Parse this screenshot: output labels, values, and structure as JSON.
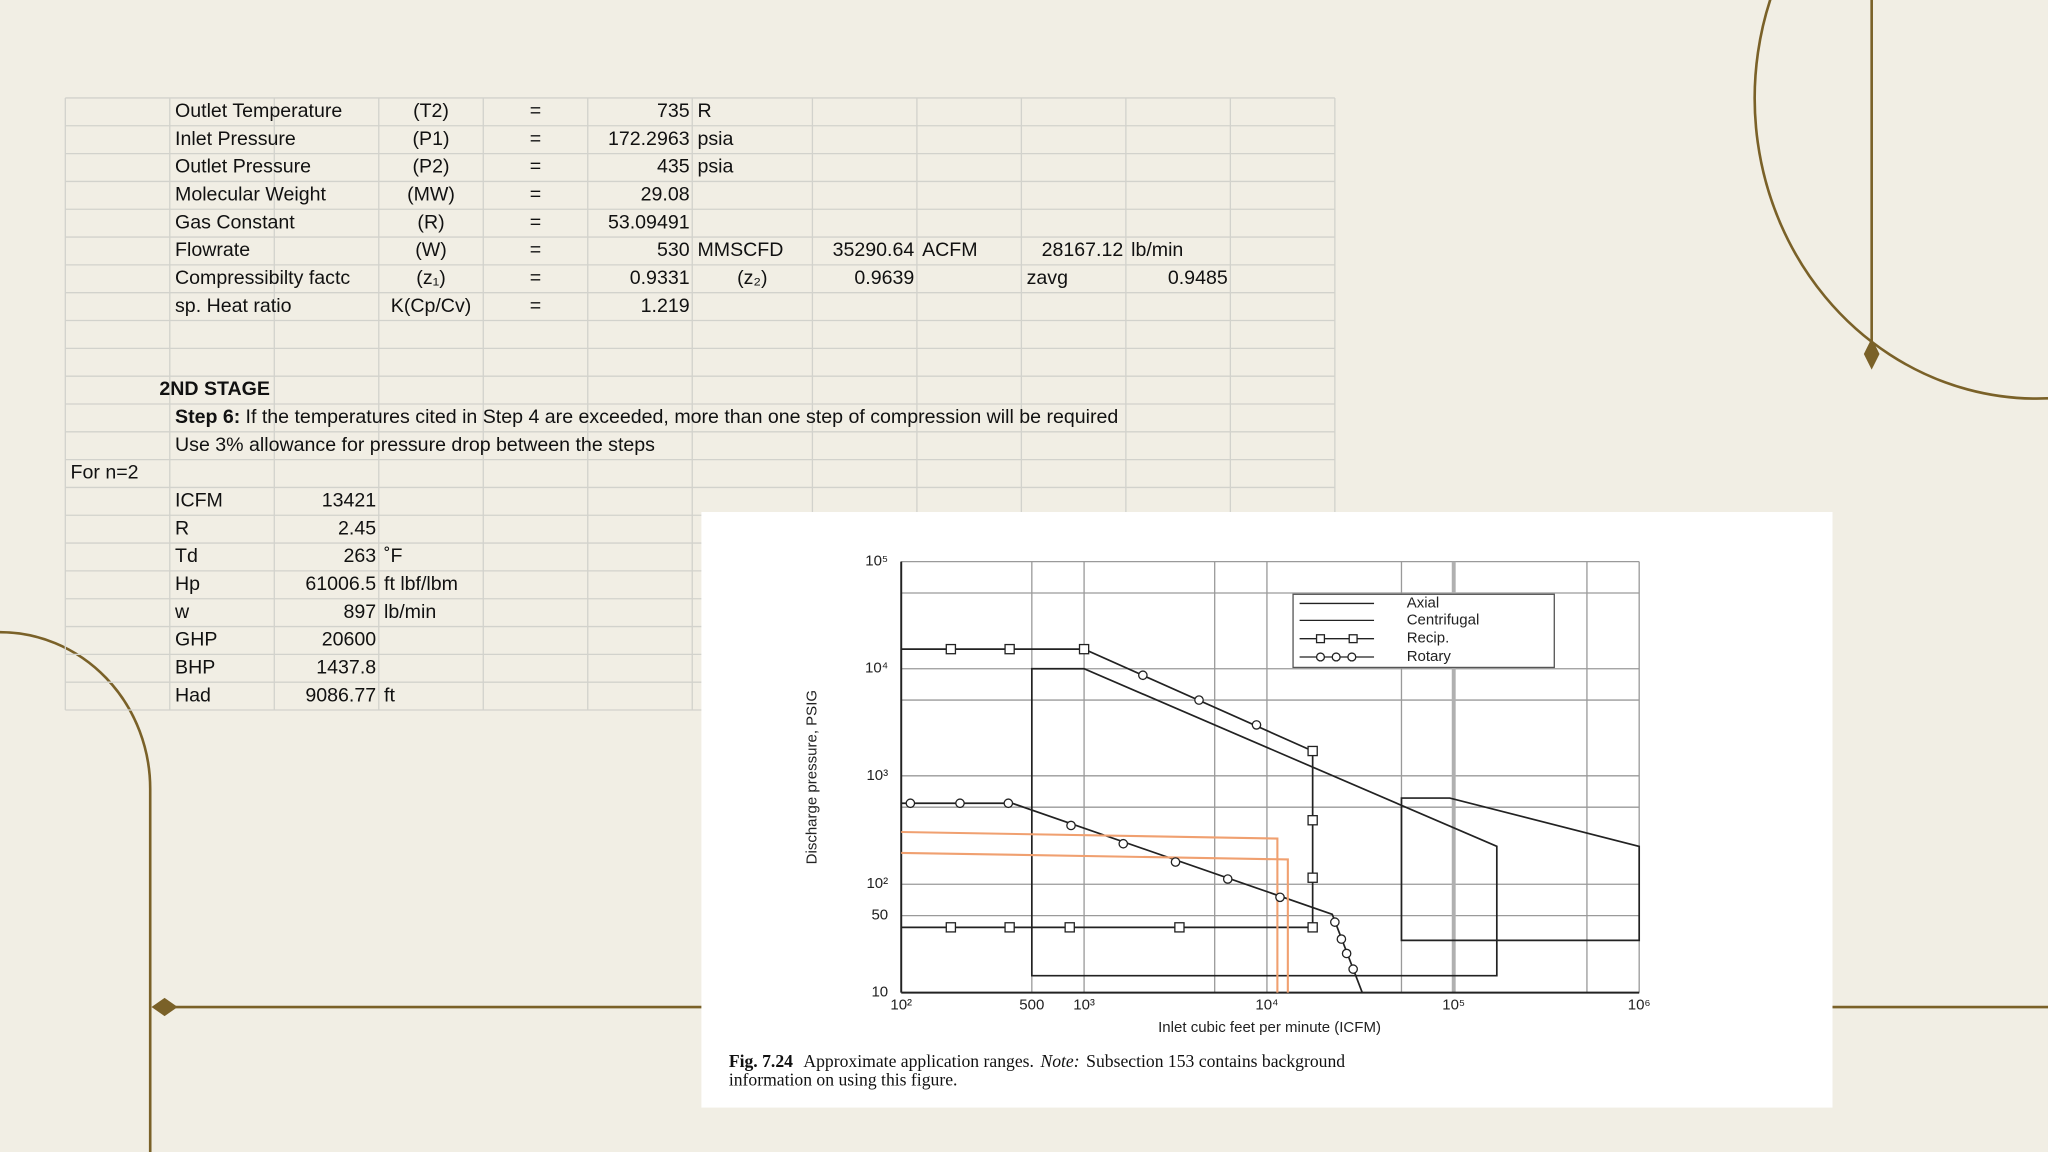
{
  "table": {
    "rows": [
      [
        null,
        "Outlet Temperature",
        null,
        "(T2)",
        "=",
        "735",
        "R",
        null,
        null,
        null,
        null,
        null
      ],
      [
        null,
        "Inlet Pressure",
        null,
        "(P1)",
        "=",
        "172.2963",
        "psia",
        null,
        null,
        null,
        null,
        null
      ],
      [
        null,
        "Outlet Pressure",
        null,
        "(P2)",
        "=",
        "435",
        "psia",
        null,
        null,
        null,
        null,
        null
      ],
      [
        null,
        "Molecular Weight",
        null,
        "(MW)",
        "=",
        "29.08",
        null,
        null,
        null,
        null,
        null,
        null
      ],
      [
        null,
        "Gas Constant",
        null,
        "(R)",
        "=",
        "53.09491",
        null,
        null,
        null,
        null,
        null,
        null
      ],
      [
        null,
        "Flowrate",
        null,
        "(W)",
        "=",
        "530",
        "MMSCFD",
        "35290.64",
        "ACFM",
        "28167.12",
        "lb/min",
        null
      ],
      [
        null,
        "Compressibilty factc",
        null,
        "(z₁)",
        "=",
        "0.9331",
        "(z₂)",
        "0.9639",
        null,
        "zavg",
        "0.9485",
        null
      ],
      [
        null,
        "sp. Heat ratio",
        null,
        "K(Cp/Cv)",
        "=",
        "1.219",
        null,
        null,
        null,
        null,
        null,
        null
      ],
      [
        null,
        null,
        null,
        null,
        null,
        null,
        null,
        null,
        null,
        null,
        null,
        null
      ],
      [
        null,
        null,
        null,
        null,
        null,
        null,
        null,
        null,
        null,
        null,
        null,
        null
      ],
      [
        null,
        "2ND STAGE",
        null,
        null,
        null,
        null,
        null,
        null,
        null,
        null,
        null,
        null
      ],
      [
        null,
        {
          "label": "Step 6:",
          "text": "If the temperatures cited in Step 4 are exceeded, more than one step of compression will be required"
        },
        null,
        null,
        null,
        null,
        null,
        null,
        null,
        null,
        null,
        null
      ],
      [
        null,
        "Use 3% allowance for pressure drop between the steps",
        null,
        null,
        null,
        null,
        null,
        null,
        null,
        null,
        null,
        null
      ],
      [
        "For n=2",
        null,
        null,
        null,
        null,
        null,
        null,
        null,
        null,
        null,
        null,
        null
      ],
      [
        null,
        "ICFM",
        "13421",
        null,
        null,
        null,
        null,
        null,
        null,
        null,
        null,
        null
      ],
      [
        null,
        "R",
        "2.45",
        null,
        null,
        null,
        null,
        null,
        null,
        null,
        null,
        null
      ],
      [
        null,
        "Td",
        "263",
        "˚F",
        null,
        null,
        null,
        null,
        null,
        null,
        null,
        null
      ],
      [
        null,
        "Hp",
        "61006.5",
        "ft lbf/lbm",
        null,
        null,
        null,
        null,
        null,
        null,
        null,
        null
      ],
      [
        null,
        "w",
        "897",
        "lb/min",
        null,
        null,
        null,
        null,
        null,
        null,
        null,
        null
      ],
      [
        null,
        "GHP",
        "20600",
        null,
        null,
        null,
        null,
        null,
        null,
        null,
        null,
        null
      ],
      [
        null,
        "BHP",
        "1437.8",
        null,
        null,
        null,
        null,
        null,
        null,
        null,
        null,
        null
      ],
      [
        null,
        "Had",
        "9086.77",
        "ft",
        null,
        null,
        null,
        null,
        null,
        null,
        null,
        null
      ]
    ]
  },
  "figure": {
    "y_ticks": [
      "10⁵",
      "10⁴",
      "10³",
      "10²",
      "50",
      "10"
    ],
    "x_ticks": [
      "10²",
      "500",
      "10³",
      "10⁴",
      "10⁵",
      "10⁶"
    ],
    "x_label": "Inlet cubic feet per minute (ICFM)",
    "y_label": "Discharge pressure, PSIG",
    "legend": [
      "Axial",
      "Centrifugal",
      "Recip.",
      "Rotary"
    ],
    "caption": {
      "label": "Fig. 7.24",
      "text": "Approximate application ranges.",
      "note": "Note:",
      "rest": "Subsection 153 contains background",
      "line2": "information on using this figure."
    }
  }
}
